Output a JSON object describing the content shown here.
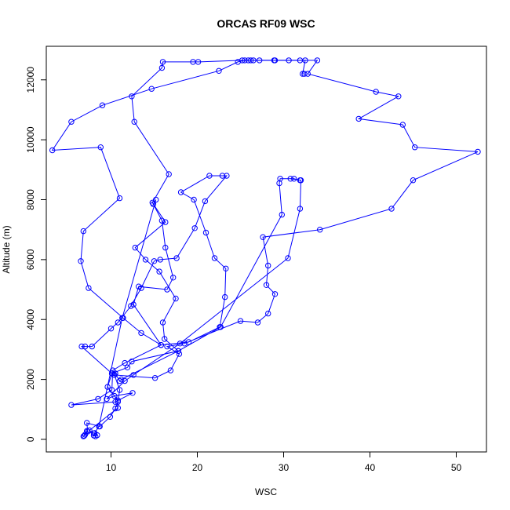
{
  "chart_data": {
    "type": "line",
    "title": "ORCAS RF09 WSC",
    "xlabel": "WSC",
    "ylabel": "Altitude (m)",
    "xlim": [
      2.5,
      53.5
    ],
    "ylim": [
      -420,
      13120
    ],
    "xticks": [
      10,
      20,
      30,
      40,
      50
    ],
    "yticks": [
      0,
      2000,
      4000,
      6000,
      8000,
      10000,
      12000
    ],
    "grid": false,
    "marker": "open-circle",
    "colors": {
      "series": "#0000ff",
      "axes": "#000000"
    },
    "series": [
      {
        "points": [
          [
            7.2,
            280
          ],
          [
            6.8,
            100
          ],
          [
            6.9,
            120
          ],
          [
            7.0,
            160
          ],
          [
            7.3,
            260
          ],
          [
            7.2,
            550
          ],
          [
            8.7,
            430
          ],
          [
            9.9,
            750
          ],
          [
            10.5,
            1030
          ],
          [
            10.8,
            1250
          ],
          [
            11.0,
            1650
          ],
          [
            10.4,
            2150
          ],
          [
            15.1,
            2050
          ],
          [
            16.9,
            2300
          ],
          [
            17.9,
            2850
          ],
          [
            16.5,
            3100
          ],
          [
            18.5,
            3200
          ],
          [
            25.0,
            3950
          ],
          [
            27.0,
            3900
          ],
          [
            28.2,
            4200
          ],
          [
            29.0,
            4850
          ],
          [
            28.0,
            5150
          ],
          [
            28.2,
            5800
          ],
          [
            27.6,
            6750
          ],
          [
            34.2,
            7000
          ],
          [
            42.5,
            7700
          ],
          [
            45.0,
            8650
          ],
          [
            52.5,
            9600
          ],
          [
            45.2,
            9750
          ],
          [
            43.8,
            10500
          ],
          [
            38.7,
            10700
          ],
          [
            43.3,
            11450
          ],
          [
            40.7,
            11600
          ],
          [
            32.8,
            12200
          ],
          [
            33.9,
            12650
          ],
          [
            30.6,
            12650
          ],
          [
            28.9,
            12650
          ],
          [
            26.5,
            12650
          ],
          [
            25.5,
            12650
          ],
          [
            24.7,
            12600
          ],
          [
            22.5,
            12300
          ],
          [
            14.7,
            11700
          ],
          [
            9.0,
            11150
          ],
          [
            5.4,
            10600
          ],
          [
            3.2,
            9650
          ],
          [
            8.8,
            9750
          ],
          [
            11.0,
            8050
          ],
          [
            6.8,
            6950
          ],
          [
            6.5,
            5950
          ],
          [
            7.4,
            5050
          ],
          [
            11.4,
            4050
          ],
          [
            13.5,
            3550
          ],
          [
            15.8,
            3150
          ],
          [
            11.6,
            2550
          ],
          [
            10.2,
            2300
          ],
          [
            10.1,
            1650
          ],
          [
            8.5,
            1350
          ],
          [
            5.4,
            1150
          ],
          [
            10.5,
            1250
          ],
          [
            12.5,
            1550
          ],
          [
            10.4,
            1450
          ],
          [
            9.5,
            1350
          ],
          [
            11.6,
            1950
          ],
          [
            12.6,
            2150
          ],
          [
            18.0,
            3200
          ],
          [
            30.5,
            6050
          ],
          [
            31.9,
            7700
          ],
          [
            32.0,
            8650
          ],
          [
            30.8,
            8700
          ]
        ]
      },
      {
        "points": [
          [
            8.0,
            200
          ],
          [
            7.5,
            300
          ],
          [
            10.8,
            1050
          ],
          [
            10.8,
            1300
          ],
          [
            9.6,
            1750
          ],
          [
            10.1,
            2200
          ],
          [
            11.9,
            2400
          ],
          [
            12.4,
            2600
          ],
          [
            17.8,
            2950
          ],
          [
            16.2,
            3350
          ],
          [
            16.0,
            3900
          ],
          [
            17.5,
            4700
          ],
          [
            15.6,
            5600
          ],
          [
            14.0,
            6000
          ],
          [
            12.8,
            6400
          ],
          [
            16.3,
            7250
          ],
          [
            14.8,
            7900
          ],
          [
            16.7,
            8850
          ],
          [
            12.7,
            10600
          ],
          [
            12.4,
            11450
          ],
          [
            15.9,
            12400
          ],
          [
            16.0,
            12600
          ],
          [
            19.5,
            12600
          ],
          [
            20.1,
            12600
          ],
          [
            25.2,
            12650
          ],
          [
            25.9,
            12650
          ],
          [
            26.2,
            12650
          ],
          [
            27.2,
            12650
          ],
          [
            29.0,
            12650
          ],
          [
            31.9,
            12650
          ],
          [
            32.5,
            12650
          ],
          [
            32.2,
            12200
          ],
          [
            32.4,
            12200
          ]
        ]
      },
      {
        "points": [
          [
            8.4,
            140
          ],
          [
            8.2,
            100
          ],
          [
            8.0,
            130
          ],
          [
            8.1,
            210
          ],
          [
            8.6,
            430
          ],
          [
            11.3,
            4050
          ],
          [
            15.2,
            8000
          ],
          [
            14.9,
            7850
          ],
          [
            15.9,
            7300
          ],
          [
            16.3,
            6400
          ],
          [
            17.2,
            5400
          ],
          [
            16.5,
            5000
          ],
          [
            13.2,
            5100
          ],
          [
            12.6,
            4500
          ],
          [
            15.8,
            3150
          ],
          [
            19.0,
            3250
          ],
          [
            22.6,
            3750
          ],
          [
            23.2,
            4750
          ],
          [
            23.3,
            5700
          ],
          [
            22.0,
            6050
          ],
          [
            21.0,
            6900
          ],
          [
            19.6,
            8000
          ],
          [
            18.1,
            8250
          ],
          [
            21.4,
            8800
          ],
          [
            22.9,
            8800
          ],
          [
            23.4,
            8800
          ],
          [
            20.9,
            7950
          ],
          [
            19.7,
            7050
          ],
          [
            17.6,
            6050
          ],
          [
            15.7,
            6000
          ],
          [
            15.0,
            5950
          ],
          [
            13.5,
            5050
          ],
          [
            12.3,
            4450
          ],
          [
            10.8,
            3900
          ],
          [
            10.0,
            3700
          ],
          [
            7.8,
            3100
          ],
          [
            7.0,
            3100
          ],
          [
            6.6,
            3100
          ],
          [
            10.1,
            2200
          ],
          [
            10.5,
            2200
          ],
          [
            11.0,
            1950
          ],
          [
            11.2,
            2000
          ],
          [
            17.8,
            2950
          ],
          [
            22.7,
            3750
          ],
          [
            29.8,
            7500
          ],
          [
            29.5,
            8550
          ],
          [
            29.6,
            8700
          ],
          [
            31.2,
            8700
          ],
          [
            31.9,
            8650
          ]
        ]
      }
    ]
  }
}
